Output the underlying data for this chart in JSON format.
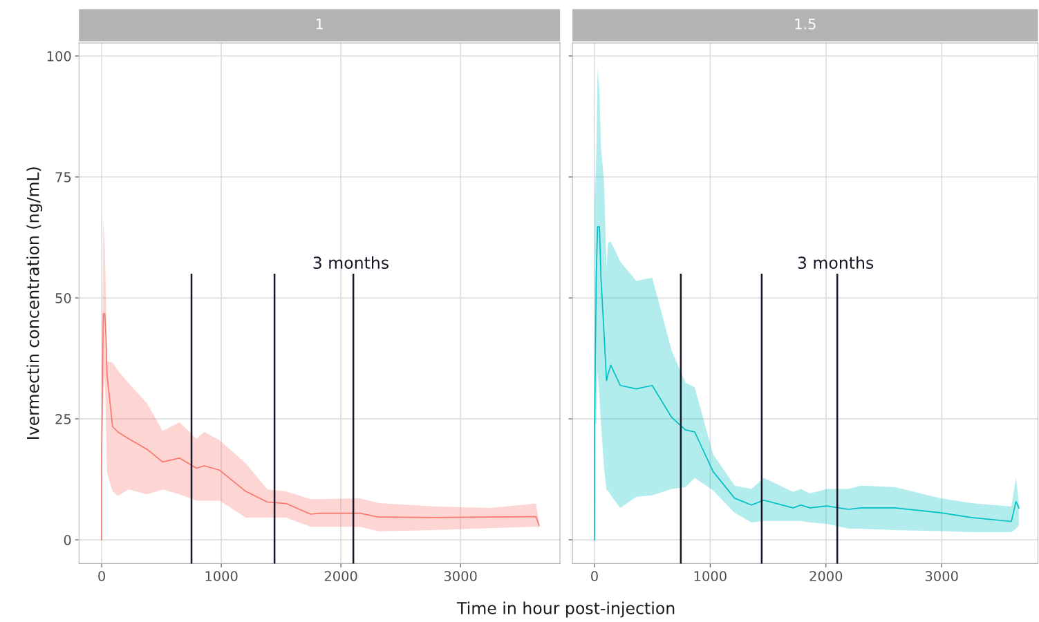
{
  "chart_data": [
    {
      "type": "line",
      "title": "1",
      "ylabel": "Ivermectin concentration (ng/mL)",
      "xlabel": "Time in hour post-injection",
      "xlim": [
        -190,
        3832
      ],
      "xticks": [
        0,
        1000,
        2000,
        3000
      ],
      "ylim": [
        -4.9,
        102.7
      ],
      "yticks": [
        0,
        25,
        50,
        75,
        100
      ],
      "grid": true,
      "series": [
        {
          "color": "#f8766d",
          "x": [
            0,
            0,
            13,
            26,
            36,
            44,
            91,
            135,
            225,
            380,
            509,
            651,
            793,
            857,
            986,
            1205,
            1386,
            1541,
            1747,
            1825,
            2160,
            2315,
            2780,
            3244,
            3631,
            3657
          ],
          "values": [
            0,
            17.7,
            46.7,
            46.7,
            41.9,
            34.3,
            23.4,
            22.3,
            20.9,
            18.7,
            16.1,
            16.9,
            14.8,
            15.3,
            14.4,
            10.0,
            7.8,
            7.5,
            5.3,
            5.5,
            5.5,
            4.7,
            4.6,
            4.7,
            4.8,
            3.0
          ],
          "lower": [
            0,
            17.7,
            30,
            34,
            24,
            13.9,
            10.0,
            9.1,
            10.4,
            9.4,
            10.4,
            9.4,
            8.1,
            8.1,
            8.1,
            4.6,
            4.6,
            4.6,
            2.7,
            2.7,
            2.7,
            1.75,
            2.0,
            2.4,
            2.7,
            2.5
          ],
          "upper": [
            0,
            17.7,
            66.5,
            60.4,
            50.2,
            36.9,
            36.6,
            35.0,
            32.4,
            28.2,
            22.5,
            24.3,
            20.9,
            22.3,
            20.6,
            15.8,
            10.4,
            10.0,
            8.4,
            8.4,
            8.6,
            7.6,
            6.9,
            6.6,
            7.5,
            3.5
          ]
        }
      ],
      "ref_lines": [
        {
          "axis": "x",
          "value": 751,
          "color": "#1a1426"
        },
        {
          "axis": "x",
          "value": 1445,
          "color": "#1a1426"
        },
        {
          "axis": "x",
          "value": 2104,
          "color": "#1a1426"
        }
      ],
      "annotations": [
        "3 months"
      ]
    },
    {
      "type": "line",
      "title": "1.5",
      "xlim": [
        -190,
        3832
      ],
      "xticks": [
        0,
        1000,
        2000,
        3000
      ],
      "ylim": [
        -4.9,
        102.7
      ],
      "yticks": [
        0,
        25,
        50,
        75,
        100
      ],
      "grid": true,
      "tick_labels": "x",
      "series": [
        {
          "color": "#00bfc4",
          "x": [
            0,
            1,
            16,
            27,
            43,
            56,
            83,
            104,
            117,
            141,
            223,
            361,
            499,
            667,
            786,
            866,
            1025,
            1211,
            1357,
            1463,
            1716,
            1783,
            1862,
            2008,
            2194,
            2300,
            2593,
            2991,
            3257,
            3602,
            3642,
            3668
          ],
          "values": [
            0,
            23.7,
            55.5,
            64.7,
            64.7,
            54.2,
            42.4,
            32.9,
            34.2,
            36.1,
            31.9,
            31.2,
            31.9,
            25.3,
            22.7,
            22.3,
            14.1,
            8.6,
            7.2,
            8.2,
            6.6,
            7.2,
            6.6,
            7.0,
            6.3,
            6.6,
            6.6,
            5.6,
            4.6,
            3.8,
            7.9,
            6.6
          ],
          "lower": [
            0,
            23.7,
            24,
            35,
            29.3,
            24,
            14.8,
            10.2,
            10.2,
            9.2,
            6.6,
            8.9,
            9.2,
            10.5,
            10.9,
            12.8,
            10.2,
            5.6,
            3.6,
            3.9,
            3.9,
            3.9,
            3.6,
            3.3,
            2.3,
            2.3,
            2.0,
            1.8,
            1.6,
            1.6,
            2.3,
            3.0
          ],
          "upper": [
            0,
            69.9,
            80,
            97.5,
            92.9,
            81.1,
            73.9,
            56.2,
            61.4,
            61.7,
            57.5,
            53.5,
            54.2,
            39.1,
            32.5,
            31.5,
            17.7,
            11.2,
            10.5,
            12.8,
            9.9,
            10.5,
            9.6,
            10.5,
            10.5,
            11.2,
            10.9,
            8.6,
            7.6,
            6.9,
            12.8,
            7.5
          ]
        }
      ],
      "ref_lines": [
        {
          "axis": "x",
          "value": 746,
          "color": "#1a1426"
        },
        {
          "axis": "x",
          "value": 1445,
          "color": "#1a1426"
        },
        {
          "axis": "x",
          "value": 2098,
          "color": "#1a1426"
        }
      ],
      "annotations": [
        "3 months"
      ]
    }
  ]
}
